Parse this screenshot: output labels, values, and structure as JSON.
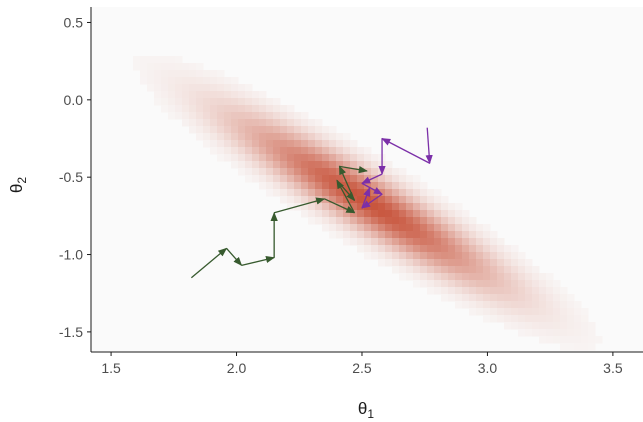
{
  "chart_data": {
    "type": "scatter",
    "xlabel": "θ1",
    "ylabel": "θ2",
    "xlim": [
      1.42,
      3.62
    ],
    "ylim": [
      -1.63,
      0.6
    ],
    "x_ticks": [
      1.5,
      2.0,
      2.5,
      3.0,
      3.5
    ],
    "y_ticks": [
      0.5,
      0.0,
      -0.5,
      -1.0,
      -1.5
    ],
    "x_tick_labels": [
      "1.5",
      "2.0",
      "2.5",
      "3.0",
      "3.5"
    ],
    "y_tick_labels": [
      "0.5",
      "0.0",
      "-0.5",
      "-1.0",
      "-1.5"
    ],
    "grid": false,
    "density": {
      "center": [
        2.52,
        -0.66
      ],
      "sd_theta1": 0.32,
      "sd_theta2": 0.33,
      "correlation": -0.93,
      "colors": [
        "#fafafa",
        "#c8553d"
      ]
    },
    "series": [
      {
        "color": "#375a2e",
        "points": [
          [
            1.82,
            -1.15
          ],
          [
            1.96,
            -0.96
          ],
          [
            2.02,
            -1.07
          ],
          [
            2.15,
            -1.02
          ],
          [
            2.15,
            -0.73
          ],
          [
            2.35,
            -0.64
          ],
          [
            2.47,
            -0.73
          ],
          [
            2.4,
            -0.52
          ],
          [
            2.47,
            -0.65
          ],
          [
            2.41,
            -0.43
          ],
          [
            2.52,
            -0.46
          ]
        ]
      },
      {
        "color": "#7b2fa8",
        "points": [
          [
            2.76,
            -0.18
          ],
          [
            2.77,
            -0.41
          ],
          [
            2.58,
            -0.25
          ],
          [
            2.58,
            -0.48
          ],
          [
            2.5,
            -0.54
          ],
          [
            2.58,
            -0.61
          ],
          [
            2.5,
            -0.7
          ],
          [
            2.53,
            -0.57
          ]
        ]
      }
    ]
  }
}
